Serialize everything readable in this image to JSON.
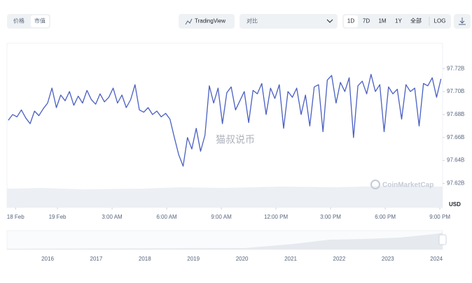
{
  "toolbar": {
    "tabs": [
      "价格",
      "市值"
    ],
    "tradingview": "TradingView",
    "compare": "对比",
    "ranges": [
      "1D",
      "7D",
      "1M",
      "1Y",
      "全部"
    ],
    "log": "LOG"
  },
  "watermark": "猫叔说币",
  "brand": "CoinMarketCap",
  "currency": "USD",
  "navigator": {
    "years": [
      "2016",
      "2017",
      "2018",
      "2019",
      "2020",
      "2021",
      "2022",
      "2023",
      "2024"
    ]
  },
  "chart_data": {
    "type": "line",
    "series": [
      {
        "color": "#4a5fc1",
        "x": [
          -2.7,
          -2.46,
          -2.22,
          -1.98,
          -1.74,
          -1.5,
          -1.26,
          -1.02,
          -0.78,
          -0.54,
          -0.3,
          -0.06,
          0.18,
          0.42,
          0.66,
          0.9,
          1.14,
          1.38,
          1.62,
          1.86,
          2.1,
          2.34,
          2.58,
          2.82,
          3.06,
          3.3,
          3.54,
          3.78,
          4.02,
          4.26,
          4.5,
          4.74,
          4.98,
          5.22,
          5.46,
          5.7,
          5.94,
          6.18,
          6.42,
          6.66,
          6.9,
          7.14,
          7.38,
          7.62,
          7.86,
          8.1,
          8.34,
          8.58,
          8.82,
          9.06,
          9.3,
          9.54,
          9.78,
          10.02,
          10.26,
          10.5,
          10.74,
          10.98,
          11.22,
          11.46,
          11.7,
          11.94,
          12.18,
          12.42,
          12.66,
          12.9,
          13.14,
          13.38,
          13.62,
          13.86,
          14.1,
          14.34,
          14.58,
          14.82,
          15.06,
          15.3,
          15.54,
          15.78,
          16.02,
          16.26,
          16.5,
          16.74,
          16.98,
          17.22,
          17.46,
          17.7,
          17.94,
          18.18,
          18.42,
          18.66,
          18.9,
          19.14,
          19.38,
          19.62,
          19.86,
          20.1,
          20.34,
          20.58,
          20.82,
          21.06
        ],
        "values": [
          97.675,
          97.68,
          97.678,
          97.684,
          97.677,
          97.672,
          97.683,
          97.679,
          97.685,
          97.69,
          97.703,
          97.686,
          97.697,
          97.692,
          97.7,
          97.688,
          97.696,
          97.69,
          97.701,
          97.693,
          97.689,
          97.698,
          97.691,
          97.695,
          97.703,
          97.69,
          97.697,
          97.686,
          97.693,
          97.706,
          97.684,
          97.682,
          97.686,
          97.68,
          97.683,
          97.678,
          97.681,
          97.676,
          97.66,
          97.645,
          97.635,
          97.66,
          97.65,
          97.668,
          97.648,
          97.662,
          97.705,
          97.69,
          97.703,
          97.672,
          97.699,
          97.704,
          97.684,
          97.692,
          97.7,
          97.673,
          97.701,
          97.698,
          97.707,
          97.68,
          97.703,
          97.694,
          97.706,
          97.668,
          97.7,
          97.695,
          97.703,
          97.68,
          97.697,
          97.67,
          97.704,
          97.706,
          97.665,
          97.71,
          97.714,
          97.69,
          97.708,
          97.7,
          97.712,
          97.66,
          97.705,
          97.709,
          97.698,
          97.715,
          97.7,
          97.706,
          97.665,
          97.704,
          97.698,
          97.702,
          97.676,
          97.706,
          97.7,
          97.703,
          97.67,
          97.707,
          97.705,
          97.712,
          97.695,
          97.711
        ]
      }
    ],
    "xlim": [
      -2.77,
      21.15
    ],
    "xticks": [
      {
        "value": -2.3,
        "label": "18 Feb"
      },
      {
        "value": 0,
        "label": "19 Feb"
      },
      {
        "value": 3,
        "label": "3:00 AM"
      },
      {
        "value": 6,
        "label": "6:00 AM"
      },
      {
        "value": 9,
        "label": "9:00 AM"
      },
      {
        "value": 12,
        "label": "12:00 PM"
      },
      {
        "value": 15,
        "label": "3:00 PM"
      },
      {
        "value": 18,
        "label": "6:00 PM"
      },
      {
        "value": 21,
        "label": "9:00 PM"
      }
    ],
    "ylim": [
      97.599,
      97.742
    ],
    "yticks": [
      {
        "value": 97.62,
        "label": "97.62B"
      },
      {
        "value": 97.64,
        "label": "97.64B"
      },
      {
        "value": 97.66,
        "label": "97.66B"
      },
      {
        "value": 97.68,
        "label": "97.68B"
      },
      {
        "value": 97.7,
        "label": "97.70B"
      },
      {
        "value": 97.72,
        "label": "97.72B"
      }
    ],
    "grid": false
  }
}
